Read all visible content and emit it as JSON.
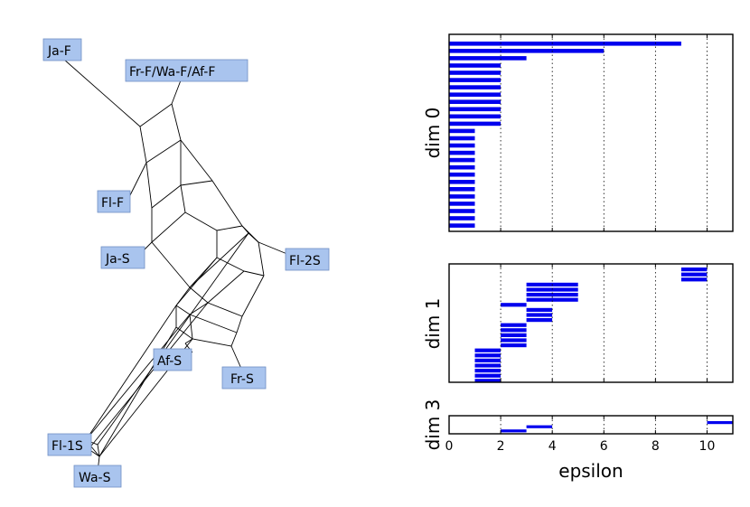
{
  "network": {
    "nodes": [
      "Ja-F",
      "Fr-F/Wa-F/Af-F",
      "Fl-F",
      "Ja-S",
      "Fl-2S",
      "Af-S",
      "Fr-S",
      "Fl-1S",
      "Wa-S"
    ]
  },
  "chart_data": [
    {
      "type": "bar",
      "name": "dim 0",
      "ylabel": "dim 0",
      "xlim": [
        0,
        11
      ],
      "grid_x": [
        2,
        4,
        6,
        8,
        10
      ],
      "intervals": [
        [
          0,
          9
        ],
        [
          0,
          6
        ],
        [
          0,
          3
        ],
        [
          0,
          2
        ],
        [
          0,
          2
        ],
        [
          0,
          2
        ],
        [
          0,
          2
        ],
        [
          0,
          2
        ],
        [
          0,
          2
        ],
        [
          0,
          2
        ],
        [
          0,
          2
        ],
        [
          0,
          2
        ],
        [
          0,
          1
        ],
        [
          0,
          1
        ],
        [
          0,
          1
        ],
        [
          0,
          1
        ],
        [
          0,
          1
        ],
        [
          0,
          1
        ],
        [
          0,
          1
        ],
        [
          0,
          1
        ],
        [
          0,
          1
        ],
        [
          0,
          1
        ],
        [
          0,
          1
        ],
        [
          0,
          1
        ],
        [
          0,
          1
        ],
        [
          0,
          1
        ]
      ]
    },
    {
      "type": "bar",
      "name": "dim 1",
      "ylabel": "dim 1",
      "xlim": [
        0,
        11
      ],
      "grid_x": [
        2,
        4,
        6,
        8,
        10
      ],
      "intervals": [
        [
          9,
          10
        ],
        [
          9,
          10
        ],
        [
          9,
          10
        ],
        [
          3,
          5
        ],
        [
          3,
          5
        ],
        [
          3,
          5
        ],
        [
          3,
          5
        ],
        [
          2,
          3
        ],
        [
          3,
          4
        ],
        [
          3,
          4
        ],
        [
          3,
          4
        ],
        [
          2,
          3
        ],
        [
          2,
          3
        ],
        [
          2,
          3
        ],
        [
          2,
          3
        ],
        [
          2,
          3
        ],
        [
          1,
          2
        ],
        [
          1,
          2
        ],
        [
          1,
          2
        ],
        [
          1,
          2
        ],
        [
          1,
          2
        ],
        [
          1,
          2
        ],
        [
          1,
          2
        ]
      ]
    },
    {
      "type": "bar",
      "name": "dim 3",
      "ylabel": "dim 3",
      "xlim": [
        0,
        11
      ],
      "grid_x": [
        2,
        4,
        6,
        8,
        10
      ],
      "xlabel": "epsilon",
      "xticks": [
        0,
        2,
        4,
        6,
        8,
        10
      ],
      "intervals": [
        [
          10,
          11
        ],
        [
          3,
          4
        ],
        [
          2,
          3
        ]
      ]
    }
  ]
}
